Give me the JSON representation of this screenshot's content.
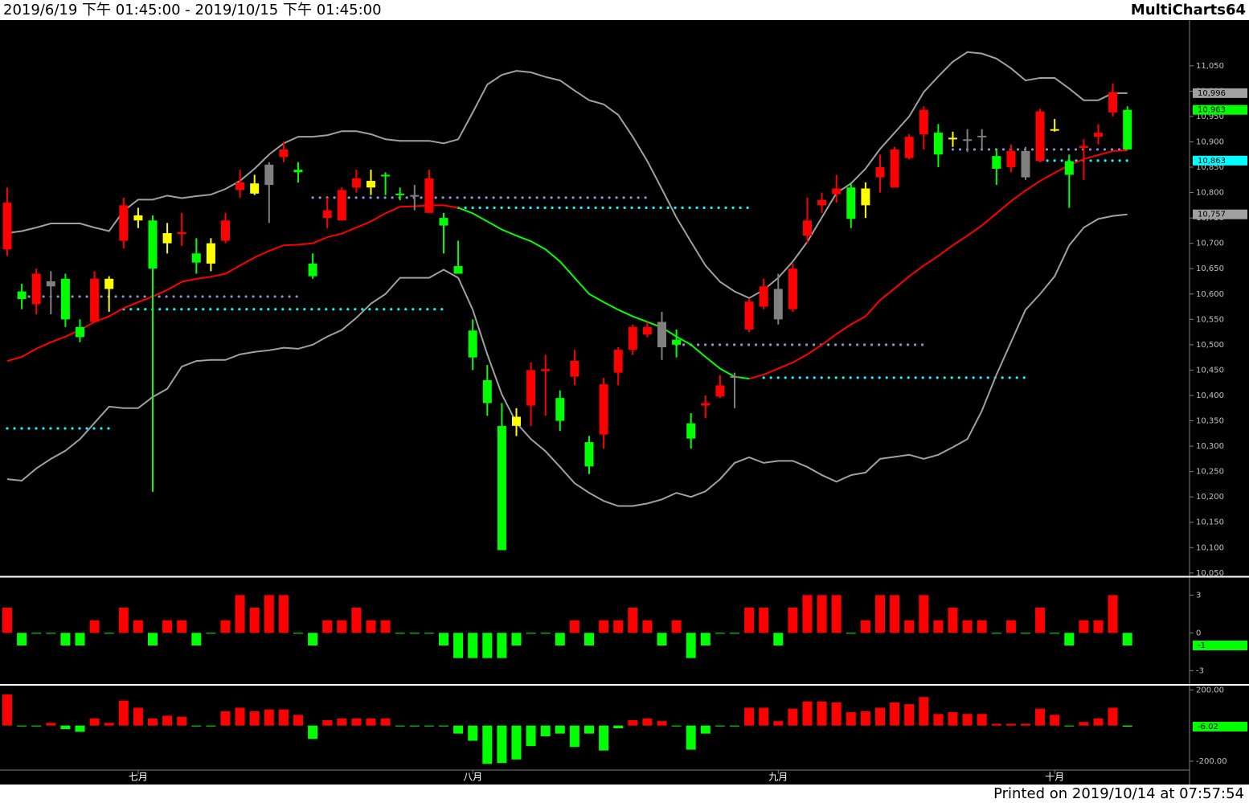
{
  "header": {
    "range": "2019/6/19 下午 01:45:00 - 2019/10/15 下午 01:45:00",
    "app": "MultiCharts64"
  },
  "footer": {
    "printed": "Printed on 2019/10/14 at 07:57:54"
  },
  "chart_data": [
    {
      "type": "candlestick",
      "categories": [
        null,
        null,
        null,
        null,
        null,
        null,
        null,
        null,
        null,
        "七月",
        null,
        null,
        null,
        null,
        null,
        null,
        null,
        null,
        null,
        null,
        null,
        null,
        null,
        null,
        null,
        null,
        null,
        null,
        null,
        null,
        null,
        null,
        "八月",
        null,
        null,
        null,
        null,
        null,
        null,
        null,
        null,
        null,
        null,
        null,
        null,
        null,
        null,
        null,
        null,
        null,
        null,
        null,
        null,
        "九月",
        null,
        null,
        null,
        null,
        null,
        null,
        null,
        null,
        null,
        null,
        null,
        null,
        null,
        null,
        null,
        null,
        null,
        null,
        "十月",
        null,
        null,
        null,
        null,
        null
      ],
      "open": [
        10780,
        10590,
        10640,
        10625,
        10550,
        10515,
        10630,
        10610,
        10775,
        10755,
        10650,
        10720,
        10722,
        10662,
        10660,
        10745,
        10820,
        10798,
        10815,
        10885,
        10840,
        10635,
        10765,
        10805,
        10828,
        10810,
        10832,
        10795,
        10792,
        10828,
        10735,
        10640,
        10475,
        10385,
        10095,
        10340,
        10450,
        10452,
        10350,
        10468,
        10260,
        10422,
        10490,
        10535,
        10535,
        10495,
        10500,
        10315,
        10385,
        10420,
        10435,
        10585,
        10615,
        10550,
        10650,
        10745,
        10785,
        10808,
        10748,
        10775,
        10850,
        10885,
        10910,
        10963,
        10875,
        10905,
        10902,
        10910,
        10847,
        10882,
        10830,
        10960,
        10925,
        10835,
        10892,
        10918,
        10998,
        10885
      ],
      "high": [
        10810,
        10620,
        10650,
        10645,
        10640,
        10550,
        10645,
        10635,
        10790,
        10770,
        10755,
        10740,
        10760,
        10710,
        10710,
        10760,
        10845,
        10835,
        10860,
        10900,
        10860,
        10680,
        10790,
        10810,
        10845,
        10845,
        10840,
        10810,
        10815,
        10845,
        10760,
        10705,
        10550,
        10460,
        10385,
        10375,
        10465,
        10480,
        10410,
        10490,
        10320,
        10435,
        10495,
        10540,
        10545,
        10565,
        10530,
        10365,
        10400,
        10440,
        10445,
        10590,
        10630,
        10640,
        10660,
        10790,
        10800,
        10835,
        10820,
        10820,
        10875,
        10890,
        10915,
        10970,
        10935,
        10920,
        10925,
        10925,
        10885,
        10895,
        10890,
        10965,
        10945,
        10875,
        10905,
        10935,
        11015,
        10970
      ],
      "low": [
        10675,
        10570,
        10560,
        10560,
        10535,
        10505,
        10545,
        10565,
        10690,
        10730,
        10210,
        10680,
        10695,
        10640,
        10645,
        10700,
        10790,
        10795,
        10740,
        10860,
        10820,
        10630,
        10730,
        10745,
        10800,
        10795,
        10795,
        10785,
        10765,
        10760,
        10680,
        10640,
        10450,
        10360,
        10095,
        10320,
        10340,
        10360,
        10330,
        10420,
        10245,
        10295,
        10420,
        10480,
        10515,
        10470,
        10475,
        10295,
        10355,
        10395,
        10375,
        10525,
        10570,
        10540,
        10565,
        10700,
        10760,
        10780,
        10730,
        10750,
        10800,
        10810,
        10865,
        10885,
        10850,
        10890,
        10880,
        10885,
        10815,
        10840,
        10825,
        10860,
        10920,
        10770,
        10825,
        10895,
        10950,
        10885
      ],
      "close": [
        10688,
        10605,
        10580,
        10615,
        10630,
        10535,
        10545,
        10630,
        10705,
        10745,
        10745,
        10700,
        10718,
        10680,
        10700,
        10705,
        10805,
        10818,
        10855,
        10870,
        10845,
        10660,
        10750,
        10745,
        10810,
        10823,
        10835,
        10798,
        10795,
        10760,
        10750,
        10655,
        10528,
        10430,
        10340,
        10358,
        10380,
        10448,
        10395,
        10437,
        10308,
        10323,
        10445,
        10490,
        10520,
        10545,
        10510,
        10345,
        10380,
        10398,
        10438,
        10530,
        10575,
        10610,
        10570,
        10715,
        10775,
        10797,
        10810,
        10808,
        10830,
        10810,
        10868,
        10915,
        10918,
        10908,
        10905,
        10912,
        10872,
        10850,
        10882,
        10862,
        10923,
        10862,
        10888,
        10910,
        10958,
        10963
      ],
      "candle_colors": [
        "#ff0000",
        "#00ff00",
        "#ff0000",
        "#808080",
        "#00ff00",
        "#00ff00",
        "#ff0000",
        "#ffff00",
        "#ff0000",
        "#ffff00",
        "#00ff00",
        "#ffff00",
        "#ff0000",
        "#00ff00",
        "#ffff00",
        "#ff0000",
        "#ff0000",
        "#ffff00",
        "#808080",
        "#ff0000",
        "#00ff00",
        "#00ff00",
        "#ff0000",
        "#ff0000",
        "#ff0000",
        "#ffff00",
        "#00ff00",
        "#00ff00",
        "#808080",
        "#ff0000",
        "#00ff00",
        "#00ff00",
        "#00ff00",
        "#00ff00",
        "#00ff00",
        "#ffff00",
        "#ff0000",
        "#ff0000",
        "#00ff00",
        "#ff0000",
        "#00ff00",
        "#ff0000",
        "#ff0000",
        "#ff0000",
        "#ff0000",
        "#808080",
        "#00ff00",
        "#00ff00",
        "#ff0000",
        "#ff0000",
        "#808080",
        "#ff0000",
        "#ff0000",
        "#808080",
        "#ff0000",
        "#ff0000",
        "#ff0000",
        "#ff0000",
        "#00ff00",
        "#ffff00",
        "#ff0000",
        "#ff0000",
        "#ff0000",
        "#ff0000",
        "#00ff00",
        "#ffff00",
        "#808080",
        "#808080",
        "#00ff00",
        "#ff0000",
        "#808080",
        "#ff0000",
        "#ffff00",
        "#00ff00",
        "#ff0000",
        "#ff0000",
        "#ff0000",
        "#00ff00"
      ],
      "series": [
        {
          "color": "#a0a0a0",
          "values": [
            10720,
            10724,
            10731,
            10739,
            10739,
            10739,
            10731,
            10724,
            10764,
            10786,
            10786,
            10794,
            10789,
            10793,
            10796,
            10807,
            10823,
            10847,
            10875,
            10897,
            10910,
            10910,
            10913,
            10921,
            10921,
            10915,
            10905,
            10902,
            10902,
            10902,
            10897,
            10905,
            10958,
            11013,
            11032,
            11040,
            11037,
            11028,
            11021,
            11001,
            10982,
            10974,
            10953,
            10910,
            10862,
            10807,
            10751,
            10703,
            10656,
            10624,
            10605,
            10592,
            10608,
            10632,
            10664,
            10703,
            10751,
            10799,
            10818,
            10847,
            10886,
            10918,
            10950,
            10998,
            11029,
            11058,
            11077,
            11074,
            11064,
            11045,
            11021,
            11026,
            11026,
            11005,
            10982,
            10982,
            10996,
            10996
          ]
        },
        {
          "color": "#a0a0a0",
          "values": [
            10235,
            10232,
            10256,
            10275,
            10291,
            10314,
            10346,
            10378,
            10375,
            10375,
            10397,
            10413,
            10457,
            10468,
            10470,
            10470,
            10481,
            10486,
            10489,
            10494,
            10492,
            10500,
            10516,
            10529,
            10553,
            10581,
            10600,
            10632,
            10632,
            10632,
            10648,
            10632,
            10569,
            10481,
            10402,
            10346,
            10314,
            10290,
            10259,
            10227,
            10208,
            10192,
            10182,
            10182,
            10187,
            10195,
            10208,
            10200,
            10211,
            10235,
            10267,
            10278,
            10267,
            10271,
            10271,
            10259,
            10243,
            10230,
            10243,
            10248,
            10275,
            10279,
            10283,
            10275,
            10283,
            10298,
            10314,
            10370,
            10441,
            10505,
            10569,
            10600,
            10635,
            10696,
            10731,
            10748,
            10754,
            10757
          ]
        },
        {
          "color": "#ff0000",
          "values": [
            10468,
            10476,
            10492,
            10505,
            10516,
            10529,
            10545,
            10556,
            10572,
            10584,
            10595,
            10608,
            10624,
            10630,
            10634,
            10640,
            10656,
            10672,
            10685,
            10696,
            10697,
            10700,
            10712,
            10719,
            10731,
            10743,
            10759,
            10772,
            10773,
            10775,
            10775,
            10770,
            null,
            null,
            null,
            null,
            null,
            null,
            null,
            null,
            null,
            null,
            null,
            null,
            null,
            null,
            null,
            null,
            null,
            null,
            null,
            10433,
            10441,
            10453,
            10465,
            10481,
            10500,
            10521,
            10540,
            10556,
            10588,
            10611,
            10635,
            10656,
            10675,
            10696,
            10715,
            10735,
            10759,
            10783,
            10804,
            10823,
            10839,
            10854,
            10866,
            10874,
            10882,
            10883
          ]
        },
        {
          "color": "#00ff00",
          "values": [
            null,
            null,
            null,
            null,
            null,
            null,
            null,
            null,
            null,
            null,
            null,
            null,
            null,
            null,
            null,
            null,
            null,
            null,
            null,
            null,
            null,
            null,
            null,
            null,
            null,
            null,
            null,
            null,
            null,
            null,
            null,
            10770,
            10759,
            10743,
            10727,
            10715,
            10704,
            10688,
            10664,
            10632,
            10600,
            10584,
            10569,
            10556,
            10545,
            10534,
            10516,
            10500,
            10476,
            10453,
            10437,
            10433,
            null,
            null,
            null,
            null,
            null,
            null,
            null,
            null,
            null,
            null,
            null,
            null,
            null,
            null,
            null,
            null,
            null,
            null,
            null,
            null,
            null,
            null,
            null,
            null,
            null,
            null
          ]
        }
      ],
      "levels": [
        {
          "value": 10335,
          "x": [
            0,
            7
          ],
          "color": "#00ffff"
        },
        {
          "value": 10595,
          "x": [
            1,
            20
          ],
          "color": "#9090d0"
        },
        {
          "value": 10570,
          "x": [
            8,
            30
          ],
          "color": "#00ffff"
        },
        {
          "value": 10790,
          "x": [
            21,
            44
          ],
          "color": "#9090d0"
        },
        {
          "value": 10770,
          "x": [
            31,
            51
          ],
          "color": "#00ffff"
        },
        {
          "value": 10500,
          "x": [
            46,
            63
          ],
          "color": "#9090d0"
        },
        {
          "value": 10435,
          "x": [
            52,
            70
          ],
          "color": "#00ffff"
        },
        {
          "value": 10885,
          "x": [
            65,
            77
          ],
          "color": "#9090d0"
        },
        {
          "value": 10863,
          "x": [
            71,
            77
          ],
          "color": "#00ffff"
        }
      ],
      "tags": [
        {
          "value": 10996,
          "label": "10,996",
          "color": "#a0a0a0"
        },
        {
          "value": 10963,
          "label": "10,963",
          "color": "#00ff00"
        },
        {
          "value": 10863,
          "label": "10,863",
          "color": "#00ffff"
        },
        {
          "value": 10757,
          "label": "10,757",
          "color": "#a0a0a0"
        }
      ],
      "ylim": [
        10045,
        11140
      ],
      "yticks": [
        {
          "value": 10050,
          "label": "10,050"
        },
        {
          "value": 10100,
          "label": "10,100"
        },
        {
          "value": 10150,
          "label": "10,150"
        },
        {
          "value": 10200,
          "label": "10,200"
        },
        {
          "value": 10250,
          "label": "10,250"
        },
        {
          "value": 10300,
          "label": "10,300"
        },
        {
          "value": 10350,
          "label": "10,350"
        },
        {
          "value": 10400,
          "label": "10,400"
        },
        {
          "value": 10450,
          "label": "10,450"
        },
        {
          "value": 10500,
          "label": "10,500"
        },
        {
          "value": 10550,
          "label": "10,550"
        },
        {
          "value": 10600,
          "label": "10,600"
        },
        {
          "value": 10650,
          "label": "10,650"
        },
        {
          "value": 10700,
          "label": "10,700"
        },
        {
          "value": 10750,
          "label": "10,750"
        },
        {
          "value": 10800,
          "label": "10,800"
        },
        {
          "value": 10850,
          "label": "10,850"
        },
        {
          "value": 10900,
          "label": "10,900"
        },
        {
          "value": 10950,
          "label": "10,950"
        },
        {
          "value": 11000,
          "label": "11,000"
        },
        {
          "value": 11050,
          "label": "11,050"
        }
      ]
    },
    {
      "type": "bar",
      "up_color": "#ff0000",
      "down_color": "#00ff00",
      "values": [
        2,
        -1,
        0,
        0,
        -1,
        -1,
        1,
        0,
        2,
        1,
        -1,
        1,
        1,
        -1,
        0,
        1,
        3,
        2,
        3,
        3,
        0,
        -1,
        1,
        1,
        2,
        1,
        1,
        0,
        0,
        0,
        -1,
        -2,
        -2,
        -2,
        -2,
        -1,
        0,
        0,
        -1,
        1,
        -1,
        1,
        1,
        2,
        1,
        -1,
        1,
        -2,
        -1,
        0,
        0,
        2,
        2,
        -1,
        2,
        3,
        3,
        3,
        0,
        1,
        3,
        3,
        1,
        3,
        1,
        2,
        1,
        1,
        0,
        1,
        0,
        2,
        0,
        -1,
        1,
        1,
        3,
        -1
      ],
      "ylim": [
        -4,
        4.3
      ],
      "yticks": [
        3,
        0,
        -3
      ]
    },
    {
      "type": "bar",
      "up_color": "#ff0000",
      "down_color": "#00ff00",
      "values": [
        175,
        0,
        0,
        15,
        -20,
        -35,
        40,
        15,
        140,
        100,
        40,
        55,
        50,
        0,
        0,
        80,
        100,
        80,
        90,
        90,
        60,
        -75,
        30,
        40,
        40,
        40,
        40,
        0,
        0,
        0,
        0,
        -45,
        -85,
        -215,
        -210,
        -190,
        -115,
        -60,
        -45,
        -120,
        -45,
        -140,
        -15,
        30,
        40,
        25,
        0,
        -135,
        -45,
        0,
        0,
        100,
        100,
        25,
        95,
        135,
        135,
        130,
        75,
        80,
        100,
        130,
        120,
        160,
        65,
        75,
        65,
        65,
        10,
        10,
        10,
        95,
        60,
        0,
        20,
        40,
        100,
        -6.02
      ],
      "ylim": [
        -245,
        215
      ],
      "yticks": [
        {
          "value": 200,
          "label": "200.00"
        },
        {
          "value": -200,
          "label": "-200.00"
        }
      ]
    }
  ]
}
